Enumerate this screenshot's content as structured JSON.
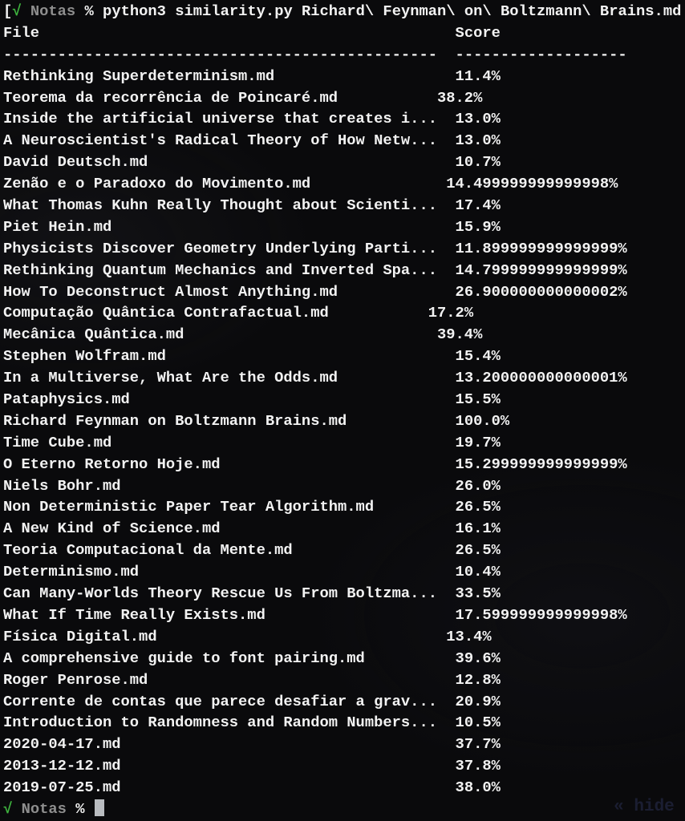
{
  "colors": {
    "background": "#0a0a0c",
    "text": "#f2f2f2",
    "green": "#3fb53f",
    "dir_gray": "#8e8e8e",
    "cursor": "#b9bcc0",
    "overlay": "#2a3052"
  },
  "command_line": {
    "bracket": "[",
    "check": "√",
    "directory": "Notas",
    "prompt_symbol": "%",
    "command": "python3 similarity.py Richard\\ Feynman\\ on\\ Boltzmann\\ Brains.md"
  },
  "table": {
    "header": {
      "file_label": "File",
      "score_label": "Score",
      "pad": 46
    },
    "separator": {
      "file_dashes": "------------------------------------------------",
      "gap": 2,
      "score_dashes": "-------------------"
    },
    "rows": [
      {
        "file": "Rethinking Superdeterminism.md",
        "pad": 20,
        "score": "11.4%"
      },
      {
        "file": "Teorema da recorrência de Poincaré.md",
        "pad": 11,
        "score": "38.2%"
      },
      {
        "file": "Inside the artificial universe that creates i...",
        "pad": 2,
        "score": "13.0%"
      },
      {
        "file": "A Neuroscientist's Radical Theory of How Netw...",
        "pad": 2,
        "score": "13.0%"
      },
      {
        "file": "David Deutsch.md",
        "pad": 34,
        "score": "10.7%"
      },
      {
        "file": "Zenão e o Paradoxo do Movimento.md",
        "pad": 15,
        "score": "14.499999999999998%"
      },
      {
        "file": "What Thomas Kuhn Really Thought about Scienti...",
        "pad": 2,
        "score": "17.4%"
      },
      {
        "file": "Piet Hein.md",
        "pad": 38,
        "score": "15.9%"
      },
      {
        "file": "Physicists Discover Geometry Underlying Parti...",
        "pad": 2,
        "score": "11.899999999999999%"
      },
      {
        "file": "Rethinking Quantum Mechanics and Inverted Spa...",
        "pad": 2,
        "score": "14.799999999999999%"
      },
      {
        "file": "How To Deconstruct Almost Anything.md",
        "pad": 13,
        "score": "26.900000000000002%"
      },
      {
        "file": "Computação Quântica Contrafactual.md",
        "pad": 11,
        "score": "17.2%"
      },
      {
        "file": "Mecânica Quântica.md",
        "pad": 28,
        "score": "39.4%"
      },
      {
        "file": "Stephen Wolfram.md",
        "pad": 32,
        "score": "15.4%"
      },
      {
        "file": "In a Multiverse, What Are the Odds.md",
        "pad": 13,
        "score": "13.200000000000001%"
      },
      {
        "file": "Pataphysics.md",
        "pad": 36,
        "score": "15.5%"
      },
      {
        "file": "Richard Feynman on Boltzmann Brains.md",
        "pad": 12,
        "score": "100.0%"
      },
      {
        "file": "Time Cube.md",
        "pad": 38,
        "score": "19.7%"
      },
      {
        "file": "O Eterno Retorno Hoje.md",
        "pad": 26,
        "score": "15.299999999999999%"
      },
      {
        "file": "Niels Bohr.md",
        "pad": 37,
        "score": "26.0%"
      },
      {
        "file": "Non Deterministic Paper Tear Algorithm.md",
        "pad": 9,
        "score": "26.5%"
      },
      {
        "file": "A New Kind of Science.md",
        "pad": 26,
        "score": "16.1%"
      },
      {
        "file": "Teoria Computacional da Mente.md",
        "pad": 18,
        "score": "26.5%"
      },
      {
        "file": "Determinismo.md",
        "pad": 35,
        "score": "10.4%"
      },
      {
        "file": "Can Many-Worlds Theory Rescue Us From Boltzma...",
        "pad": 2,
        "score": "33.5%"
      },
      {
        "file": "What If Time Really Exists.md",
        "pad": 21,
        "score": "17.599999999999998%"
      },
      {
        "file": "Física Digital.md",
        "pad": 32,
        "score": "13.4%"
      },
      {
        "file": "A comprehensive guide to font pairing.md",
        "pad": 10,
        "score": "39.6%"
      },
      {
        "file": "Roger Penrose.md",
        "pad": 34,
        "score": "12.8%"
      },
      {
        "file": "Corrente de contas que parece desafiar a grav...",
        "pad": 2,
        "score": "20.9%"
      },
      {
        "file": "Introduction to Randomness and Random Numbers...",
        "pad": 2,
        "score": "10.5%"
      },
      {
        "file": "2020-04-17.md",
        "pad": 37,
        "score": "37.7%"
      },
      {
        "file": "2013-12-12.md",
        "pad": 37,
        "score": "37.8%"
      },
      {
        "file": "2019-07-25.md",
        "pad": 37,
        "score": "38.0%"
      }
    ]
  },
  "final_prompt": {
    "check": "√",
    "directory": "Notas",
    "prompt_symbol": "%"
  },
  "overlay_text": "« hide p"
}
